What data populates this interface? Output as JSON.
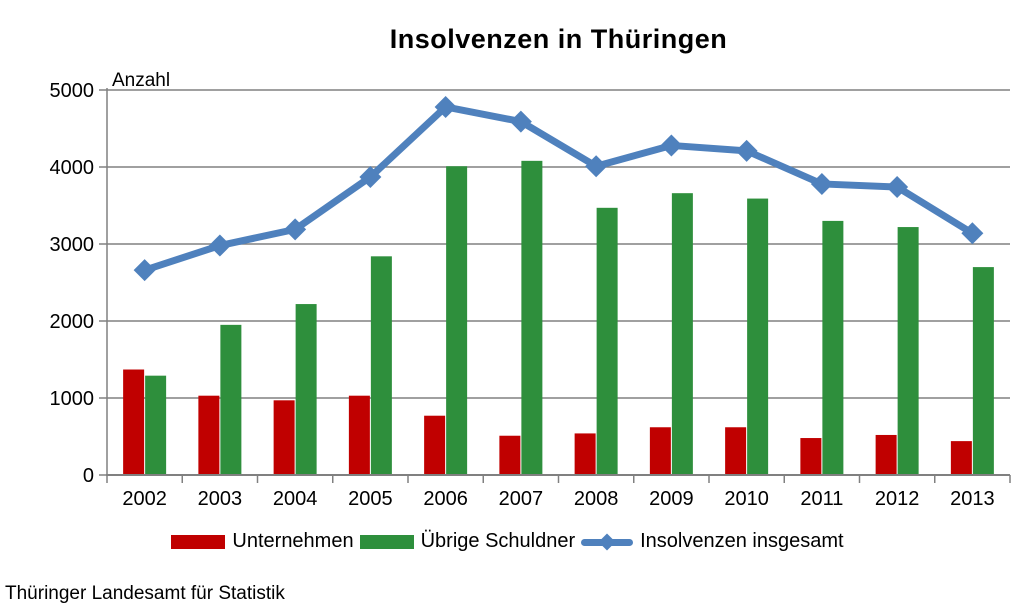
{
  "title": "Insolvenzen in Thüringen",
  "footer_source": "Thüringer Landesamt für Statistik",
  "colors": {
    "bar_red": "#C00000",
    "bar_green": "#2E8F3C",
    "line_blue": "#4F81BD",
    "grid_gray": "#808080",
    "text_black": "#000000",
    "background": "#FFFFFF"
  },
  "chart_data": {
    "type": "bar+line",
    "title": "Insolvenzen in Thüringen",
    "xlabel": "",
    "ylabel": "Anzahl",
    "ylim": [
      0,
      5000
    ],
    "yticks": [
      0,
      1000,
      2000,
      3000,
      4000,
      5000
    ],
    "grid": true,
    "legend_position": "bottom",
    "categories": [
      "2002",
      "2003",
      "2004",
      "2005",
      "2006",
      "2007",
      "2008",
      "2009",
      "2010",
      "2011",
      "2012",
      "2013"
    ],
    "series": [
      {
        "name": "Unternehmen",
        "type": "bar",
        "color": "#C00000",
        "values": [
          1370,
          1030,
          970,
          1030,
          770,
          510,
          540,
          620,
          620,
          480,
          520,
          440
        ]
      },
      {
        "name": "Übrige Schuldner",
        "type": "bar",
        "color": "#2E8F3C",
        "values": [
          1290,
          1950,
          2220,
          2840,
          4010,
          4080,
          3470,
          3660,
          3590,
          3300,
          3220,
          2700
        ]
      },
      {
        "name": "Insolvenzen insgesamt",
        "type": "line",
        "color": "#4F81BD",
        "values": [
          2660,
          2980,
          3190,
          3870,
          4780,
          4590,
          4010,
          4280,
          4210,
          3780,
          3740,
          3140
        ]
      }
    ]
  }
}
